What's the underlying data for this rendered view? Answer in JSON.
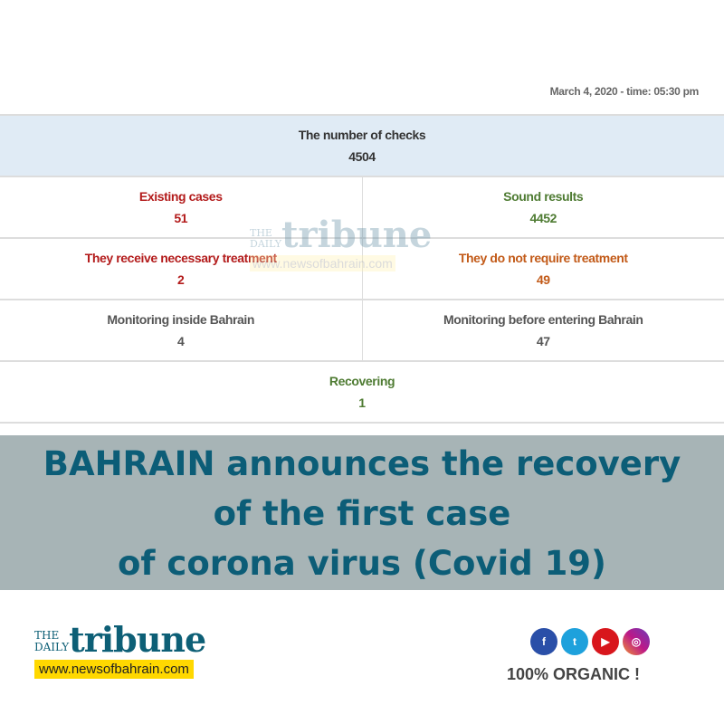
{
  "date": "March 4, 2020 - time: 05:30 pm",
  "checks": {
    "label": "The number of checks",
    "value": "4504"
  },
  "rows": [
    [
      {
        "label": "Existing cases",
        "value": "51"
      },
      {
        "label": "Sound results",
        "value": "4452"
      }
    ],
    [
      {
        "label": "They receive necessary treatment",
        "value": "2"
      },
      {
        "label": "They do not require treatment",
        "value": "49"
      }
    ],
    [
      {
        "label": "Monitoring inside Bahrain",
        "value": "4"
      },
      {
        "label": "Monitoring before entering Bahrain",
        "value": "47"
      }
    ]
  ],
  "recovering": {
    "label": "Recovering",
    "value": "1"
  },
  "watermark": {
    "the": "THE",
    "daily": "DAILY",
    "name": "tribune",
    "url": "www.newsofbahrain.com"
  },
  "headline": [
    "BAHRAIN announces the recovery",
    "of the first case",
    "of corona virus (Covid 19)"
  ],
  "logo": {
    "the": "THE",
    "daily": "DAILY",
    "name": "tribune",
    "url": "www.newsofbahrain.com"
  },
  "social": [
    {
      "icon": "facebook-icon",
      "glyph": "f",
      "color": "#2a4fa8"
    },
    {
      "icon": "twitter-icon",
      "glyph": "t",
      "color": "#1ea1dc"
    },
    {
      "icon": "youtube-icon",
      "glyph": "▶",
      "color": "#d8161c"
    },
    {
      "icon": "instagram-icon",
      "glyph": "◎",
      "color": "#a83290"
    }
  ],
  "tagline": "100% ORGANIC !"
}
